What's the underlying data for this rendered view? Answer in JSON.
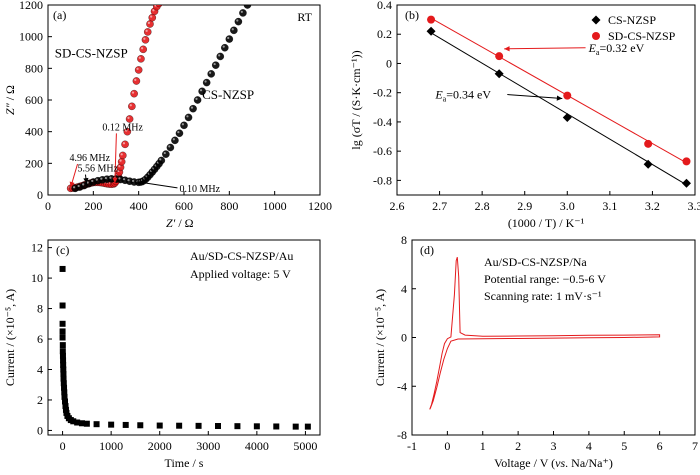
{
  "chart_data": [
    {
      "panel": "(a)",
      "type": "scatter",
      "corner_text": "RT",
      "xlabel_var": "Z′",
      "xlabel_unit": " / Ω",
      "ylabel_var": "Z″",
      "ylabel_unit": " / Ω",
      "xlim": [
        0,
        1200
      ],
      "ylim": [
        0,
        1200
      ],
      "xticks": [
        0,
        200,
        400,
        600,
        800,
        1000,
        1200
      ],
      "yticks": [
        0,
        200,
        400,
        600,
        800,
        1000,
        1200
      ],
      "series": [
        {
          "name": "SD-CS-NZSP",
          "color": "#e41a1c",
          "points": [
            [
              100,
              42
            ],
            [
              110,
              44
            ],
            [
              120,
              46
            ],
            [
              130,
              50
            ],
            [
              140,
              54
            ],
            [
              150,
              58
            ],
            [
              160,
              63
            ],
            [
              170,
              68
            ],
            [
              180,
              72
            ],
            [
              190,
              76
            ],
            [
              200,
              79
            ],
            [
              210,
              80
            ],
            [
              220,
              80
            ],
            [
              230,
              79
            ],
            [
              240,
              77
            ],
            [
              250,
              74
            ],
            [
              260,
              71
            ],
            [
              270,
              69
            ],
            [
              280,
              68
            ],
            [
              290,
              70
            ],
            [
              295,
              76
            ],
            [
              300,
              86
            ],
            [
              305,
              100
            ],
            [
              310,
              120
            ],
            [
              315,
              145
            ],
            [
              320,
              175
            ],
            [
              325,
              210
            ],
            [
              330,
              250
            ],
            [
              340,
              320
            ],
            [
              350,
              400
            ],
            [
              360,
              480
            ],
            [
              370,
              560
            ],
            [
              380,
              640
            ],
            [
              390,
              720
            ],
            [
              400,
              790
            ],
            [
              410,
              860
            ],
            [
              420,
              920
            ],
            [
              430,
              980
            ],
            [
              440,
              1030
            ],
            [
              450,
              1080
            ],
            [
              460,
              1120
            ],
            [
              470,
              1160
            ],
            [
              480,
              1190
            ],
            [
              490,
              1210
            ],
            [
              500,
              1220
            ]
          ]
        },
        {
          "name": "CS-NZSP",
          "color": "#000000",
          "points": [
            [
              120,
              42
            ],
            [
              140,
              50
            ],
            [
              160,
              60
            ],
            [
              180,
              72
            ],
            [
              200,
              82
            ],
            [
              220,
              90
            ],
            [
              240,
              96
            ],
            [
              260,
              100
            ],
            [
              280,
              102
            ],
            [
              300,
              101
            ],
            [
              320,
              98
            ],
            [
              340,
              93
            ],
            [
              360,
              87
            ],
            [
              380,
              82
            ],
            [
              400,
              80
            ],
            [
              410,
              82
            ],
            [
              420,
              88
            ],
            [
              430,
              98
            ],
            [
              440,
              112
            ],
            [
              450,
              128
            ],
            [
              460,
              145
            ],
            [
              470,
              162
            ],
            [
              480,
              180
            ],
            [
              490,
              198
            ],
            [
              500,
              218
            ],
            [
              520,
              258
            ],
            [
              540,
              300
            ],
            [
              560,
              345
            ],
            [
              580,
              390
            ],
            [
              600,
              440
            ],
            [
              620,
              490
            ],
            [
              640,
              545
            ],
            [
              660,
              600
            ],
            [
              680,
              655
            ],
            [
              700,
              710
            ],
            [
              720,
              765
            ],
            [
              740,
              820
            ],
            [
              760,
              875
            ],
            [
              780,
              930
            ],
            [
              800,
              985
            ],
            [
              820,
              1040
            ],
            [
              840,
              1095
            ],
            [
              860,
              1150
            ],
            [
              880,
              1200
            ]
          ]
        }
      ],
      "series_labels": [
        "SD-CS-NZSP",
        "CS-NZSP"
      ],
      "annotations": [
        {
          "text": "4.96 MHz",
          "color": "#e41a1c",
          "at": [
            95,
            215
          ],
          "arrow_to": [
            100,
            48
          ]
        },
        {
          "text": "0.12 MHz",
          "color": "#e41a1c",
          "at": [
            240,
            408
          ],
          "arrow_to": [
            295,
            75
          ]
        },
        {
          "text": "5.56 MHz",
          "color": "#000000",
          "at": [
            130,
            148
          ],
          "arrow_to": [
            170,
            72
          ]
        },
        {
          "text": "0.10 MHz",
          "color": "#000000",
          "at": [
            580,
            20
          ],
          "arrow_to": [
            400,
            82
          ]
        }
      ]
    },
    {
      "panel": "(b)",
      "type": "line",
      "xlabel": "(1000 / T) / K⁻¹",
      "ylabel": "lg (σT / (S·K·cm⁻¹))",
      "xlim": [
        2.6,
        3.3
      ],
      "ylim": [
        -0.9,
        0.4
      ],
      "xticks": [
        "2.6",
        "2.7",
        "2.8",
        "2.9",
        "3.0",
        "3.1",
        "3.2",
        "3.3"
      ],
      "yticks": [
        "0.4",
        "0.2",
        "0",
        "-0.2",
        "-0.4",
        "-0.6",
        "-0.8"
      ],
      "legend": [
        "CS-NZSP",
        "SD-CS-NZSP"
      ],
      "legend_position": "top-right",
      "series": [
        {
          "name": "CS-NZSP",
          "color": "#000000",
          "marker": "diamond",
          "x": [
            2.68,
            2.84,
            3.0,
            3.19,
            3.28
          ],
          "y": [
            0.22,
            -0.07,
            -0.37,
            -0.69,
            -0.82
          ],
          "fit": [
            [
              2.68,
              0.21
            ],
            [
              3.28,
              -0.83
            ]
          ]
        },
        {
          "name": "SD-CS-NZSP",
          "color": "#e41a1c",
          "marker": "circle",
          "x": [
            2.68,
            2.84,
            3.0,
            3.19,
            3.28
          ],
          "y": [
            0.3,
            0.05,
            -0.22,
            -0.55,
            -0.67
          ],
          "fit": [
            [
              2.68,
              0.31
            ],
            [
              3.28,
              -0.68
            ]
          ]
        }
      ],
      "annotations": [
        {
          "sym": "E",
          "sub": "a",
          "value": "=0.32 eV",
          "color": "#e41a1c",
          "at": [
            3.05,
            0.08
          ],
          "arrow_to": [
            2.84,
            0.1
          ]
        },
        {
          "sym": "E",
          "sub": "a",
          "value": "=0.34 eV",
          "color": "#000000",
          "at": [
            2.69,
            -0.24
          ],
          "arrow_to": [
            3.0,
            -0.24
          ]
        }
      ]
    },
    {
      "panel": "(c)",
      "type": "scatter",
      "xlabel": "Time / s",
      "ylabel": "Current / (×10⁻⁵, A)",
      "xlim": [
        -300,
        5300
      ],
      "ylim": [
        -0.3,
        12.5
      ],
      "xticks": [
        0,
        1000,
        2000,
        3000,
        4000,
        5000
      ],
      "yticks": [
        0,
        2,
        4,
        6,
        8,
        10,
        12
      ],
      "text_lines": [
        "Au/SD-CS-NZSP/Au",
        "Applied voltage: 5 V"
      ],
      "series": [
        {
          "name": "",
          "color": "#000000",
          "marker": "square",
          "points": [
            [
              0,
              10.6
            ],
            [
              0,
              8.2
            ],
            [
              0,
              7.0
            ],
            [
              0,
              6.5
            ],
            [
              0,
              6.1
            ],
            [
              5,
              5.6
            ],
            [
              5,
              5.2
            ],
            [
              8,
              4.9
            ],
            [
              10,
              4.6
            ],
            [
              12,
              4.3
            ],
            [
              15,
              4.0
            ],
            [
              18,
              3.7
            ],
            [
              20,
              3.4
            ],
            [
              25,
              3.1
            ],
            [
              30,
              2.8
            ],
            [
              35,
              2.5
            ],
            [
              40,
              2.2
            ],
            [
              50,
              1.9
            ],
            [
              60,
              1.6
            ],
            [
              70,
              1.35
            ],
            [
              80,
              1.15
            ],
            [
              100,
              0.95
            ],
            [
              130,
              0.8
            ],
            [
              170,
              0.68
            ],
            [
              220,
              0.6
            ],
            [
              300,
              0.52
            ],
            [
              400,
              0.47
            ],
            [
              500,
              0.44
            ],
            [
              700,
              0.41
            ],
            [
              1000,
              0.38
            ],
            [
              1300,
              0.36
            ],
            [
              1600,
              0.34
            ],
            [
              2000,
              0.32
            ],
            [
              2400,
              0.31
            ],
            [
              2800,
              0.3
            ],
            [
              3200,
              0.29
            ],
            [
              3600,
              0.28
            ],
            [
              4000,
              0.27
            ],
            [
              4400,
              0.26
            ],
            [
              4800,
              0.25
            ],
            [
              5050,
              0.25
            ]
          ]
        }
      ]
    },
    {
      "panel": "(d)",
      "type": "line",
      "xlabel_pre": "Voltage / V (",
      "xlabel_vs": "vs",
      "xlabel_post": ". Na/Na⁺)",
      "ylabel": "Current / (×10⁻⁵, A)",
      "xlim": [
        -1,
        7
      ],
      "ylim": [
        -8,
        8
      ],
      "xticks": [
        -1,
        0,
        1,
        2,
        3,
        4,
        5,
        6,
        7
      ],
      "yticks": [
        -8,
        -4,
        0,
        4,
        8
      ],
      "text_lines": [
        "Au/SD-CS-NZSP/Na",
        "Potential range: −0.5-6 V",
        "Scanning rate: 1 mV·s⁻¹"
      ],
      "series": [
        {
          "name": "",
          "color": "#e41a1c",
          "points": [
            [
              -0.5,
              -5.9
            ],
            [
              -0.45,
              -5.5
            ],
            [
              -0.38,
              -4.7
            ],
            [
              -0.3,
              -3.6
            ],
            [
              -0.22,
              -2.4
            ],
            [
              -0.15,
              -1.3
            ],
            [
              -0.08,
              -0.5
            ],
            [
              0,
              -0.1
            ],
            [
              0.1,
              0.05
            ],
            [
              0.2,
              3.5
            ],
            [
              0.25,
              6.3
            ],
            [
              0.28,
              6.6
            ],
            [
              0.32,
              5.0
            ],
            [
              0.36,
              0.4
            ],
            [
              0.5,
              0.2
            ],
            [
              1,
              0.1
            ],
            [
              2,
              0.12
            ],
            [
              3,
              0.15
            ],
            [
              4,
              0.18
            ],
            [
              5,
              0.2
            ],
            [
              6,
              0.22
            ],
            [
              6,
              0.05
            ],
            [
              5,
              0.0
            ],
            [
              4,
              -0.02
            ],
            [
              3,
              -0.05
            ],
            [
              2,
              -0.08
            ],
            [
              1,
              -0.1
            ],
            [
              0.3,
              -0.12
            ],
            [
              0.1,
              -0.3
            ],
            [
              0,
              -0.9
            ],
            [
              -0.1,
              -1.8
            ],
            [
              -0.2,
              -2.9
            ],
            [
              -0.3,
              -4.1
            ],
            [
              -0.4,
              -5.2
            ],
            [
              -0.48,
              -5.8
            ],
            [
              -0.5,
              -5.9
            ]
          ]
        }
      ]
    }
  ]
}
